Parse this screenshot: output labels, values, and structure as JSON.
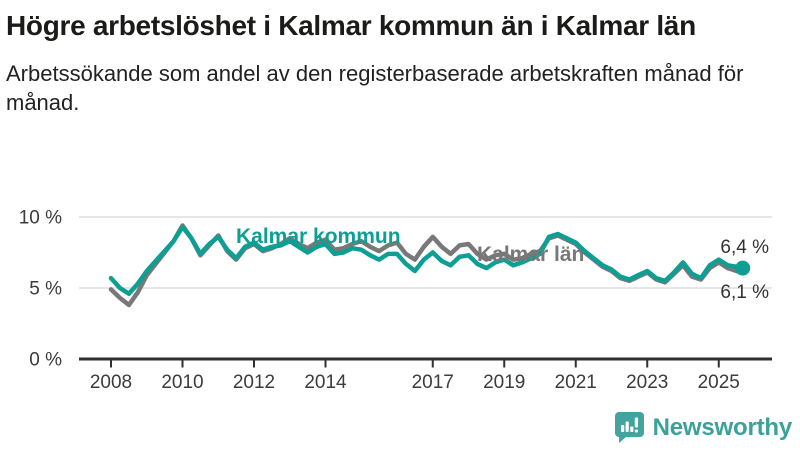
{
  "header": {
    "title": "Högre arbetslöshet i Kalmar kommun än i Kalmar län",
    "subtitle": "Arbetssökande som andel av den registerbaserade arbetskraften månad för månad."
  },
  "branding": {
    "name": "Newsworthy",
    "logo_color": "#43a39e",
    "logo_icon": "speech-bubble-with-bar-chart-and-exclamation"
  },
  "chart_data": {
    "type": "line",
    "x_unit": "decimal_year",
    "xlim": [
      2007.9,
      2025.9
    ],
    "ylim": [
      0,
      10
    ],
    "grid": "horizontal",
    "grid_color": "#dedede",
    "axis_color": "#2f2f2f",
    "tick_label_color": "#3c3c3c",
    "legend_position": "inline-labels-on-lines",
    "yticks": [
      {
        "value": 10,
        "label": "10 %"
      },
      {
        "value": 5,
        "label": "5 %"
      },
      {
        "value": 0,
        "label": "0 %"
      }
    ],
    "xticks": [
      {
        "value": 2008,
        "label": "2008"
      },
      {
        "value": 2010,
        "label": "2010"
      },
      {
        "value": 2012,
        "label": "2012"
      },
      {
        "value": 2014,
        "label": "2014"
      },
      {
        "value": 2017,
        "label": "2017"
      },
      {
        "value": 2019,
        "label": "2019"
      },
      {
        "value": 2021,
        "label": "2021"
      },
      {
        "value": 2023,
        "label": "2023"
      },
      {
        "value": 2025,
        "label": "2025"
      }
    ],
    "x": [
      2008,
      2008.25,
      2008.5,
      2008.75,
      2009,
      2009.25,
      2009.5,
      2009.75,
      2010,
      2010.25,
      2010.5,
      2010.75,
      2011,
      2011.25,
      2011.5,
      2011.75,
      2012,
      2012.25,
      2012.5,
      2012.75,
      2013,
      2013.25,
      2013.5,
      2013.75,
      2014,
      2014.25,
      2014.5,
      2014.75,
      2015,
      2015.25,
      2015.5,
      2015.75,
      2016,
      2016.25,
      2016.5,
      2016.75,
      2017,
      2017.25,
      2017.5,
      2017.75,
      2018,
      2018.25,
      2018.5,
      2018.75,
      2019,
      2019.25,
      2019.5,
      2019.75,
      2020,
      2020.25,
      2020.5,
      2020.75,
      2021,
      2021.25,
      2021.5,
      2021.75,
      2022,
      2022.25,
      2022.5,
      2022.75,
      2023,
      2023.25,
      2023.5,
      2023.75,
      2024,
      2024.25,
      2024.5,
      2024.75,
      2025,
      2025.25,
      2025.5,
      2025.67
    ],
    "series": [
      {
        "name": "Kalmar kommun",
        "color": "#0d9e94",
        "end_label": "6,4 %",
        "end_value": 6.4,
        "end_dot": true,
        "values": [
          5.7,
          5.0,
          4.6,
          5.3,
          6.2,
          6.9,
          7.6,
          8.3,
          9.3,
          8.5,
          7.4,
          8.1,
          8.6,
          7.7,
          7.1,
          7.9,
          8.2,
          7.7,
          7.9,
          8.0,
          8.3,
          7.9,
          7.5,
          7.9,
          8.1,
          7.4,
          7.5,
          7.8,
          7.7,
          7.3,
          7.0,
          7.4,
          7.4,
          6.7,
          6.2,
          7.0,
          7.5,
          6.9,
          6.6,
          7.2,
          7.3,
          6.7,
          6.4,
          6.8,
          7.0,
          6.6,
          6.8,
          7.1,
          7.4,
          8.6,
          8.8,
          8.5,
          8.2,
          7.6,
          7.1,
          6.6,
          6.3,
          5.8,
          5.6,
          5.9,
          6.2,
          5.7,
          5.5,
          6.1,
          6.8,
          6.0,
          5.7,
          6.6,
          7.0,
          6.6,
          6.5,
          6.4
        ]
      },
      {
        "name": "Kalmar län",
        "color": "#787878",
        "end_label": "6,1 %",
        "end_value": 6.1,
        "end_dot": false,
        "values": [
          4.9,
          4.3,
          3.8,
          4.7,
          5.9,
          6.7,
          7.5,
          8.3,
          9.4,
          8.5,
          7.3,
          8.0,
          8.7,
          7.6,
          7.0,
          7.8,
          8.1,
          7.6,
          7.8,
          8.1,
          8.5,
          8.1,
          7.8,
          8.2,
          8.4,
          7.7,
          7.8,
          8.1,
          8.3,
          7.9,
          7.6,
          8.0,
          8.2,
          7.4,
          7.0,
          7.9,
          8.6,
          7.9,
          7.4,
          8.0,
          8.1,
          7.4,
          7.0,
          7.3,
          7.4,
          7.0,
          7.1,
          7.4,
          7.6,
          8.5,
          8.7,
          8.4,
          8.1,
          7.5,
          7.0,
          6.5,
          6.2,
          5.7,
          5.5,
          5.8,
          6.1,
          5.6,
          5.4,
          6.0,
          6.6,
          5.8,
          5.6,
          6.4,
          6.8,
          6.4,
          6.2,
          6.1
        ]
      }
    ]
  }
}
